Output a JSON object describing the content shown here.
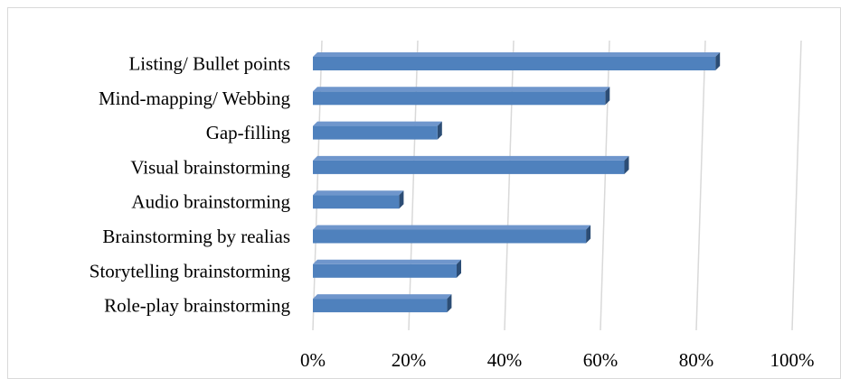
{
  "chart_data": {
    "type": "bar",
    "orientation": "horizontal",
    "style": "3d",
    "categories": [
      "Listing/ Bullet points",
      "Mind-mapping/ Webbing",
      "Gap-filling",
      "Visual brainstorming",
      "Audio brainstorming",
      "Brainstorming by realias",
      "Storytelling brainstorming",
      "Role-play brainstorming"
    ],
    "values": [
      84,
      61,
      26,
      65,
      18,
      57,
      30,
      28
    ],
    "xlim": [
      0,
      100
    ],
    "ticks": [
      0,
      20,
      40,
      60,
      80,
      100
    ],
    "tick_labels": [
      "0%",
      "20%",
      "40%",
      "60%",
      "80%",
      "100%"
    ],
    "grid": true,
    "legend": "none",
    "bar_color": "#4f81bd",
    "bar_side_color": "#2c4d75",
    "bar_top_color": "#6f96cc",
    "grid_color": "#d9d9d9"
  }
}
